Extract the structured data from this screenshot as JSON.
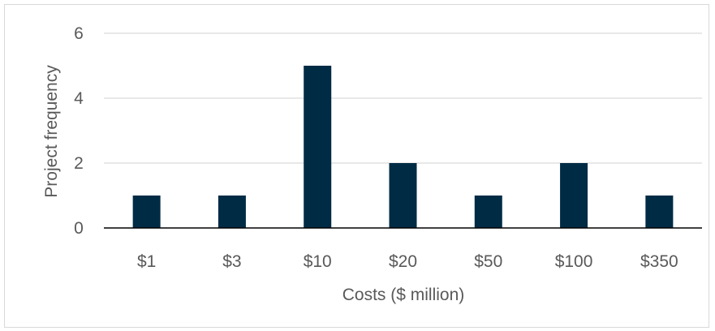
{
  "chart_data": {
    "type": "bar",
    "categories": [
      "$1",
      "$3",
      "$10",
      "$20",
      "$50",
      "$100",
      "$350"
    ],
    "values": [
      1,
      1,
      5,
      2,
      1,
      2,
      1
    ],
    "title": "",
    "xlabel": "Costs ($ million)",
    "ylabel": "Project frequency",
    "ylim": [
      0,
      6
    ],
    "yticks": [
      0,
      2,
      4,
      6
    ],
    "grid": true,
    "legend": "none",
    "bar_color": "#002b45",
    "grid_color": "#d9d9d9",
    "axis_color": "#000000"
  }
}
